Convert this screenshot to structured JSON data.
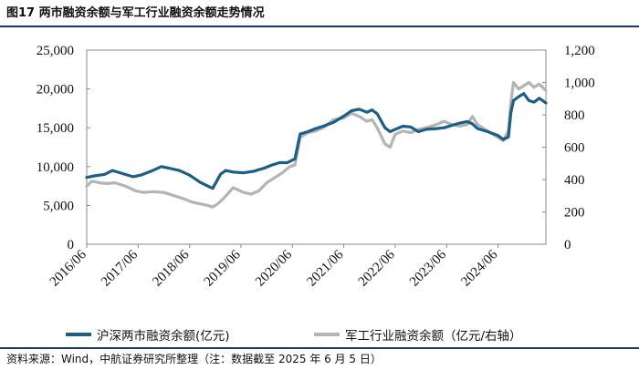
{
  "figure": {
    "title": "图17  两市融资余额与军工行业融资余额走势情况",
    "source": "资料来源：Wind，中航证券研究所整理（注：数据截至 2025 年 6 月 5 日）"
  },
  "chart_data": {
    "type": "line",
    "title": "两市融资余额与军工行业融资余额走势情况",
    "x_tick_labels": [
      "2016/06",
      "2017/06",
      "2018/06",
      "2019/06",
      "2020/06",
      "2021/06",
      "2022/06",
      "2023/06",
      "2024/06"
    ],
    "x_range": [
      2016.5,
      2025.43
    ],
    "y_left": {
      "label": "亿元",
      "range": [
        0,
        25000
      ],
      "ticks": [
        0,
        5000,
        10000,
        15000,
        20000,
        25000
      ],
      "tick_labels": [
        "0",
        "5,000",
        "10,000",
        "15,000",
        "20,000",
        "25,000"
      ]
    },
    "y_right": {
      "label": "亿元",
      "range": [
        0,
        1200
      ],
      "ticks": [
        0,
        200,
        400,
        600,
        800,
        1000,
        1200
      ],
      "tick_labels": [
        "0",
        "200",
        "400",
        "600",
        "800",
        "1,000",
        "1,200"
      ]
    },
    "grid": false,
    "legend_position": "bottom",
    "series": [
      {
        "name": "沪深两市融资余额(亿元)",
        "axis": "left",
        "color": "#1b5e87",
        "x": [
          2016.5,
          2016.65,
          2016.85,
          2017.0,
          2017.2,
          2017.4,
          2017.55,
          2017.75,
          2017.95,
          2018.1,
          2018.3,
          2018.5,
          2018.7,
          2018.85,
          2018.95,
          2019.1,
          2019.2,
          2019.35,
          2019.55,
          2019.75,
          2019.95,
          2020.1,
          2020.25,
          2020.4,
          2020.55,
          2020.65,
          2020.8,
          2020.95,
          2021.1,
          2021.3,
          2021.5,
          2021.65,
          2021.8,
          2021.95,
          2022.05,
          2022.15,
          2022.3,
          2022.4,
          2022.5,
          2022.65,
          2022.8,
          2022.95,
          2023.1,
          2023.3,
          2023.45,
          2023.6,
          2023.75,
          2023.9,
          2024.0,
          2024.1,
          2024.3,
          2024.5,
          2024.6,
          2024.7,
          2024.75,
          2024.8,
          2024.9,
          2025.0,
          2025.1,
          2025.2,
          2025.3,
          2025.43
        ],
        "values": [
          8600,
          8800,
          9000,
          9500,
          9100,
          8700,
          8900,
          9400,
          10000,
          9800,
          9500,
          8900,
          8000,
          7500,
          7200,
          9000,
          9500,
          9300,
          9200,
          9400,
          9800,
          10200,
          10500,
          10500,
          11000,
          14200,
          14500,
          14900,
          15200,
          15700,
          16500,
          17200,
          17400,
          17000,
          17300,
          16800,
          15000,
          14500,
          14800,
          15200,
          15100,
          14500,
          14800,
          14900,
          15000,
          15300,
          15600,
          15800,
          15500,
          14900,
          14500,
          14000,
          13500,
          13800,
          17000,
          18500,
          19000,
          19400,
          18500,
          18300,
          18800,
          18200
        ]
      },
      {
        "name": "军工行业融资余额（亿元/右轴）",
        "axis": "right",
        "color": "#b4b4b4",
        "x": [
          2016.5,
          2016.6,
          2016.75,
          2016.9,
          2017.05,
          2017.25,
          2017.45,
          2017.6,
          2017.8,
          2018.0,
          2018.2,
          2018.4,
          2018.55,
          2018.7,
          2018.85,
          2018.95,
          2019.05,
          2019.15,
          2019.35,
          2019.55,
          2019.7,
          2019.85,
          2020.0,
          2020.15,
          2020.3,
          2020.45,
          2020.55,
          2020.65,
          2020.8,
          2020.95,
          2021.1,
          2021.3,
          2021.5,
          2021.65,
          2021.8,
          2021.95,
          2022.05,
          2022.15,
          2022.3,
          2022.4,
          2022.5,
          2022.65,
          2022.8,
          2022.95,
          2023.1,
          2023.3,
          2023.45,
          2023.6,
          2023.75,
          2023.9,
          2024.0,
          2024.1,
          2024.3,
          2024.5,
          2024.6,
          2024.7,
          2024.75,
          2024.8,
          2024.9,
          2025.0,
          2025.1,
          2025.2,
          2025.3,
          2025.43
        ],
        "values": [
          360,
          390,
          380,
          375,
          380,
          360,
          330,
          320,
          325,
          320,
          300,
          280,
          260,
          250,
          240,
          230,
          250,
          280,
          350,
          320,
          310,
          330,
          380,
          410,
          440,
          480,
          490,
          660,
          690,
          700,
          720,
          770,
          780,
          810,
          790,
          760,
          770,
          720,
          620,
          600,
          680,
          700,
          690,
          710,
          720,
          740,
          760,
          740,
          730,
          740,
          790,
          740,
          700,
          660,
          640,
          700,
          880,
          1000,
          960,
          980,
          1000,
          970,
          990,
          950
        ]
      }
    ]
  }
}
